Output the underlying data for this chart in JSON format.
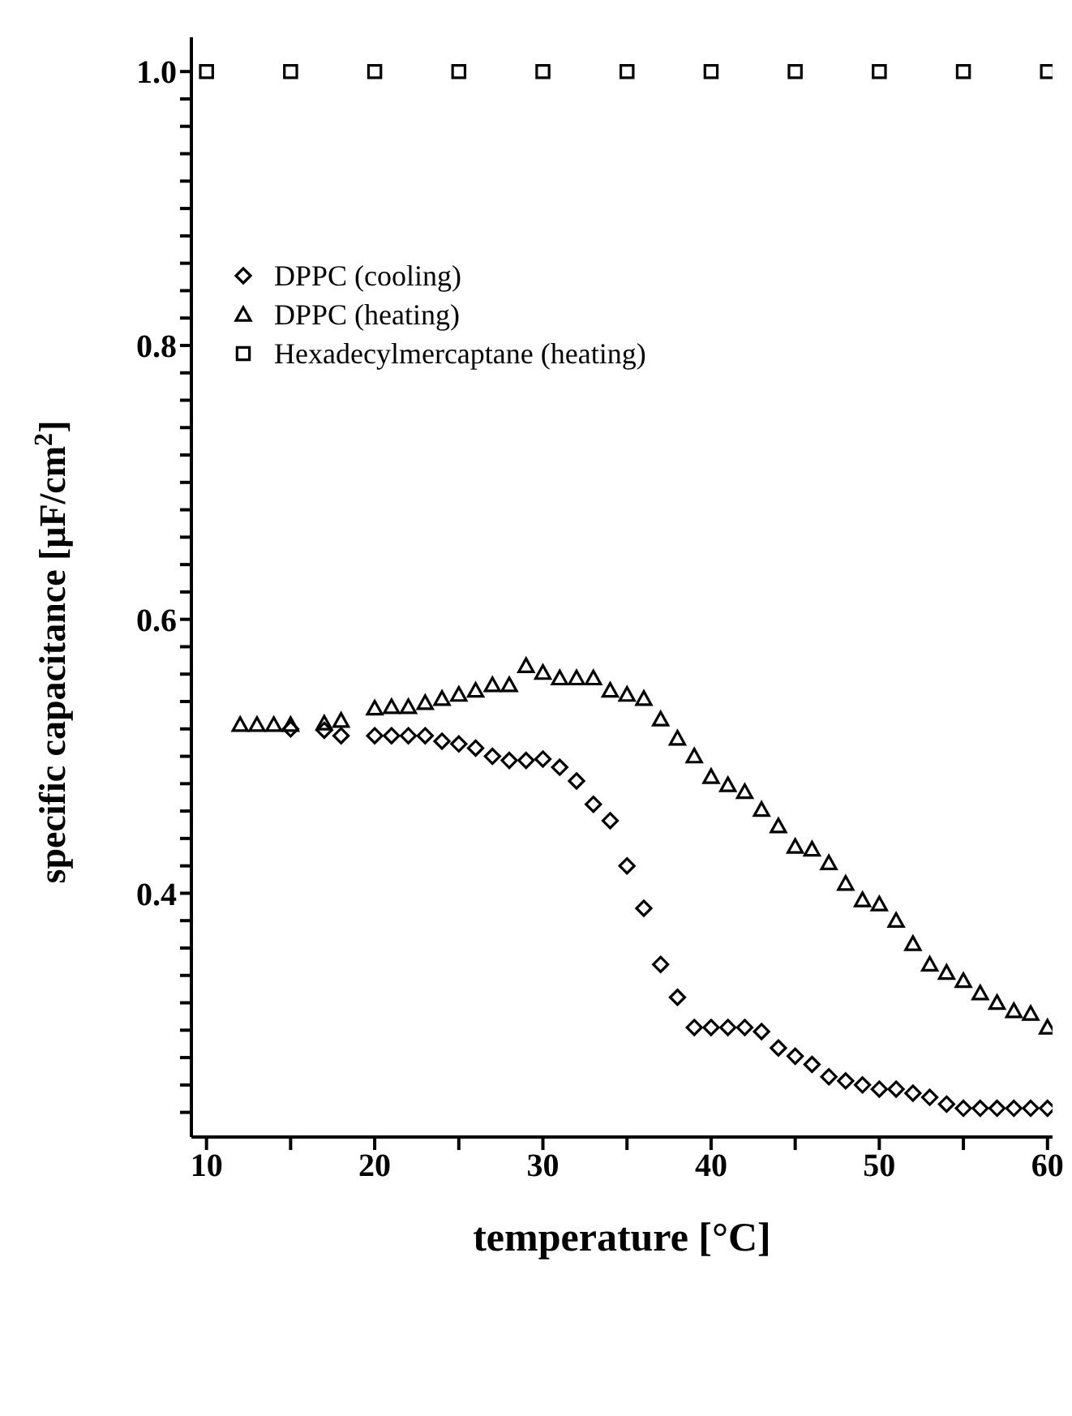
{
  "chart_data": {
    "type": "scatter",
    "xlabel": "temperature [°C]",
    "ylabel": "specific capacitance [μF/cm$^{2}$]",
    "xlim": [
      9.1,
      60.3
    ],
    "ylim": [
      0.222,
      1.025
    ],
    "xticks": [
      10,
      {
        "value": 15,
        "label": null
      },
      20,
      {
        "value": 25,
        "label": null
      },
      30,
      {
        "value": 35,
        "label": null
      },
      40,
      {
        "value": 45,
        "label": null
      },
      50,
      {
        "value": 55,
        "label": null
      },
      60
    ],
    "yticks": [
      {
        "value": 0.24,
        "label": null
      },
      {
        "value": 0.26,
        "label": null
      },
      {
        "value": 0.28,
        "label": null
      },
      {
        "value": 0.3,
        "label": null
      },
      {
        "value": 0.32,
        "label": null
      },
      {
        "value": 0.34,
        "label": null
      },
      {
        "value": 0.36,
        "label": null
      },
      {
        "value": 0.38,
        "label": null
      },
      0.4,
      {
        "value": 0.42,
        "label": null
      },
      {
        "value": 0.44,
        "label": null
      },
      {
        "value": 0.46,
        "label": null
      },
      {
        "value": 0.48,
        "label": null
      },
      {
        "value": 0.5,
        "label": null
      },
      {
        "value": 0.52,
        "label": null
      },
      {
        "value": 0.54,
        "label": null
      },
      {
        "value": 0.56,
        "label": null
      },
      {
        "value": 0.58,
        "label": null
      },
      0.6,
      {
        "value": 0.62,
        "label": null
      },
      {
        "value": 0.64,
        "label": null
      },
      {
        "value": 0.66,
        "label": null
      },
      {
        "value": 0.68,
        "label": null
      },
      {
        "value": 0.7,
        "label": null
      },
      {
        "value": 0.72,
        "label": null
      },
      {
        "value": 0.74,
        "label": null
      },
      {
        "value": 0.76,
        "label": null
      },
      {
        "value": 0.78,
        "label": null
      },
      0.8,
      {
        "value": 0.82,
        "label": null
      },
      {
        "value": 0.84,
        "label": null
      },
      {
        "value": 0.86,
        "label": null
      },
      {
        "value": 0.88,
        "label": null
      },
      {
        "value": 0.9,
        "label": null
      },
      {
        "value": 0.92,
        "label": null
      },
      {
        "value": 0.94,
        "label": null
      },
      {
        "value": 0.96,
        "label": null
      },
      {
        "value": 0.98,
        "label": null
      },
      {
        "value": 1,
        "label": "1.0"
      }
    ],
    "grid": false,
    "legend": "top left",
    "series": [
      {
        "name": "DPPC (cooling)",
        "color": "#000000",
        "marker": "diamond",
        "x": [
          15,
          17,
          18,
          20,
          21,
          22,
          23,
          24,
          25,
          26,
          27,
          28,
          29,
          30,
          31,
          32,
          33,
          34,
          35,
          36,
          37,
          38,
          39,
          40,
          41,
          42,
          43,
          44,
          45,
          46,
          47,
          48,
          49,
          50,
          51,
          52,
          53,
          54,
          55,
          56,
          57,
          58,
          59,
          60
        ],
        "values": [
          0.52,
          0.519,
          0.515,
          0.515,
          0.515,
          0.515,
          0.515,
          0.511,
          0.509,
          0.506,
          0.5,
          0.497,
          0.497,
          0.498,
          0.492,
          0.482,
          0.465,
          0.453,
          0.42,
          0.389,
          0.348,
          0.324,
          0.302,
          0.302,
          0.302,
          0.302,
          0.299,
          0.287,
          0.281,
          0.275,
          0.266,
          0.263,
          0.26,
          0.257,
          0.257,
          0.254,
          0.251,
          0.246,
          0.243,
          0.243,
          0.243,
          0.243,
          0.243,
          0.243
        ]
      },
      {
        "name": "DPPC (heating)",
        "color": "#000000",
        "marker": "triangle",
        "x": [
          12,
          13,
          14,
          15,
          17,
          18,
          20,
          21,
          22,
          23,
          24,
          25,
          26,
          27,
          28,
          29,
          30,
          31,
          32,
          33,
          34,
          35,
          36,
          37,
          38,
          39,
          40,
          41,
          42,
          43,
          44,
          45,
          46,
          47,
          48,
          49,
          50,
          51,
          52,
          53,
          54,
          55,
          56,
          57,
          58,
          59,
          60
        ],
        "values": [
          0.523,
          0.523,
          0.523,
          0.523,
          0.524,
          0.526,
          0.535,
          0.536,
          0.536,
          0.539,
          0.542,
          0.545,
          0.548,
          0.552,
          0.552,
          0.566,
          0.561,
          0.557,
          0.557,
          0.557,
          0.548,
          0.545,
          0.542,
          0.527,
          0.513,
          0.5,
          0.485,
          0.479,
          0.474,
          0.461,
          0.449,
          0.434,
          0.432,
          0.422,
          0.407,
          0.395,
          0.392,
          0.38,
          0.363,
          0.348,
          0.342,
          0.336,
          0.327,
          0.32,
          0.314,
          0.312,
          0.302
        ]
      },
      {
        "name": "Hexadecylmercaptane (heating)",
        "color": "#000000",
        "marker": "square",
        "x": [
          10,
          15,
          20,
          25,
          30,
          35,
          40,
          45,
          50,
          55,
          60
        ],
        "values": [
          1.0,
          1.0,
          1.0,
          1.0,
          1.0,
          1.0,
          1.0,
          1.0,
          1.0,
          1.0,
          1.0
        ]
      }
    ]
  }
}
